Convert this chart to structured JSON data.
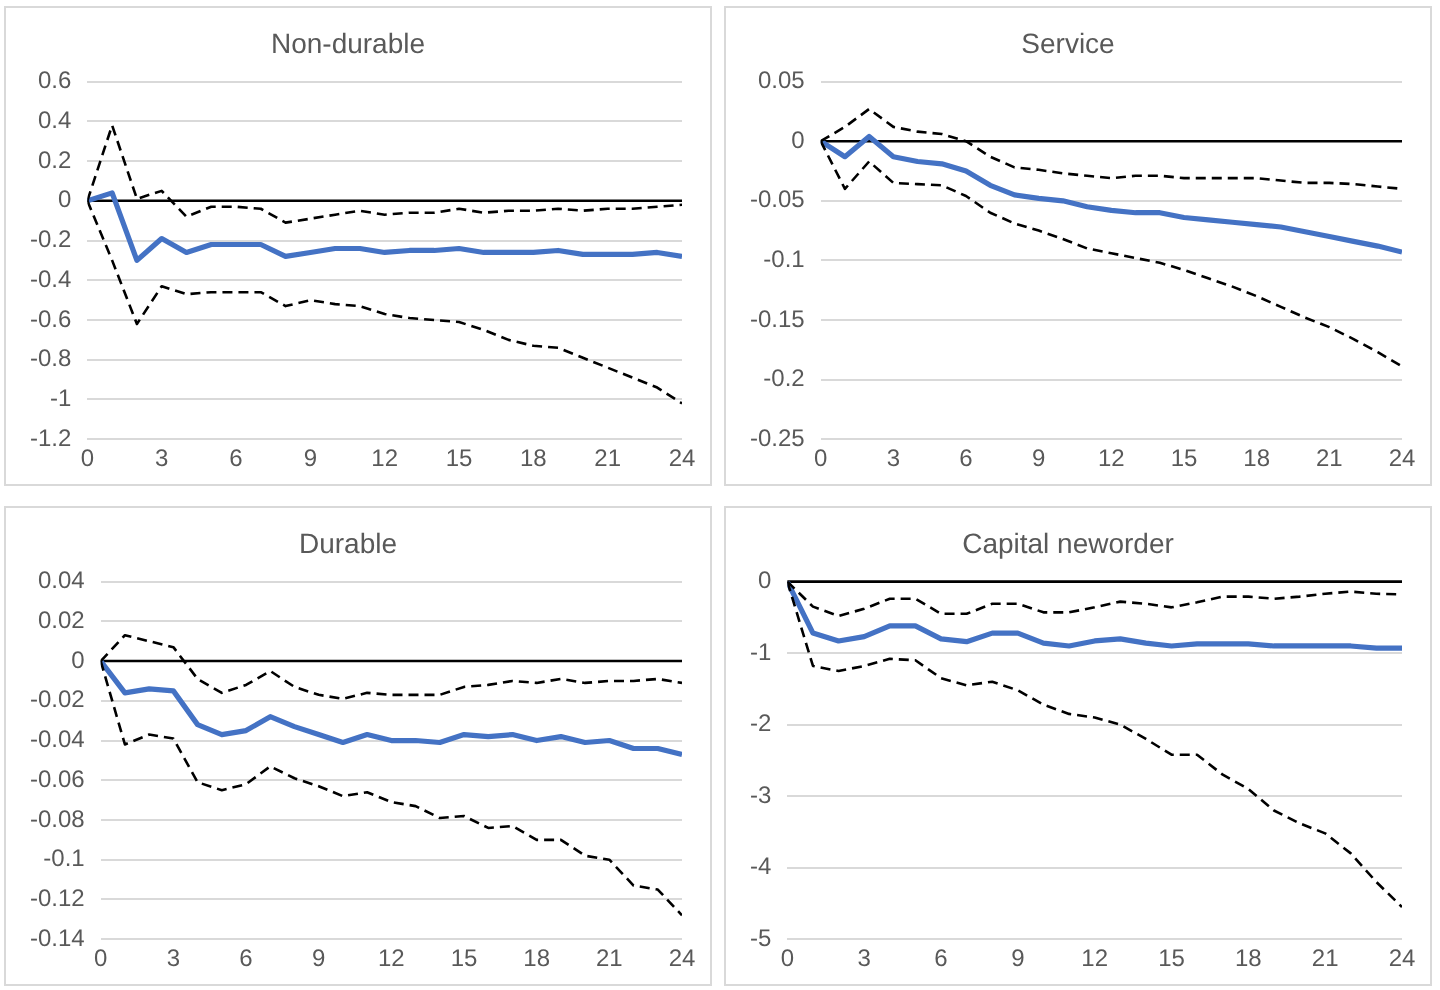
{
  "chart_data": [
    {
      "type": "line",
      "title": "Non-durable",
      "x": [
        0,
        1,
        2,
        3,
        4,
        5,
        6,
        7,
        8,
        9,
        10,
        11,
        12,
        13,
        14,
        15,
        16,
        17,
        18,
        19,
        20,
        21,
        22,
        23,
        24
      ],
      "xlim": [
        0,
        24
      ],
      "xticks": [
        0,
        3,
        6,
        9,
        12,
        15,
        18,
        21,
        24
      ],
      "ylim": [
        -1.2,
        0.6
      ],
      "yticks": [
        -1.2,
        -1,
        -0.8,
        -0.6,
        -0.4,
        -0.2,
        0,
        0.2,
        0.4,
        0.6
      ],
      "grid": "y",
      "legend": false,
      "marker": "none",
      "ref_lines": [
        {
          "axis": "y",
          "value": 0,
          "color": "#000000",
          "line_style": "solid"
        }
      ],
      "series": [
        {
          "color": "#000000",
          "line_style": "dashed",
          "values": [
            0,
            0.38,
            0.01,
            0.05,
            -0.08,
            -0.03,
            -0.03,
            -0.04,
            -0.11,
            -0.09,
            -0.07,
            -0.05,
            -0.07,
            -0.06,
            -0.06,
            -0.04,
            -0.06,
            -0.05,
            -0.05,
            -0.04,
            -0.05,
            -0.04,
            -0.04,
            -0.03,
            -0.02
          ]
        },
        {
          "color": "#000000",
          "line_style": "dashed",
          "values": [
            0,
            -0.3,
            -0.62,
            -0.43,
            -0.47,
            -0.46,
            -0.46,
            -0.46,
            -0.53,
            -0.5,
            -0.52,
            -0.53,
            -0.57,
            -0.59,
            -0.6,
            -0.61,
            -0.65,
            -0.7,
            -0.73,
            -0.74,
            -0.79,
            -0.84,
            -0.89,
            -0.94,
            -1.02
          ]
        },
        {
          "color": "#4472c4",
          "line_style": "solid",
          "values": [
            0,
            0.04,
            -0.3,
            -0.19,
            -0.26,
            -0.22,
            -0.22,
            -0.22,
            -0.28,
            -0.26,
            -0.24,
            -0.24,
            -0.26,
            -0.25,
            -0.25,
            -0.24,
            -0.26,
            -0.26,
            -0.26,
            -0.25,
            -0.27,
            -0.27,
            -0.27,
            -0.26,
            -0.28
          ]
        }
      ]
    },
    {
      "type": "line",
      "title": "Service",
      "x": [
        0,
        1,
        2,
        3,
        4,
        5,
        6,
        7,
        8,
        9,
        10,
        11,
        12,
        13,
        14,
        15,
        16,
        17,
        18,
        19,
        20,
        21,
        22,
        23,
        24
      ],
      "xlim": [
        0,
        24
      ],
      "xticks": [
        0,
        3,
        6,
        9,
        12,
        15,
        18,
        21,
        24
      ],
      "ylim": [
        -0.25,
        0.05
      ],
      "yticks": [
        -0.25,
        -0.2,
        -0.15,
        -0.1,
        -0.05,
        0,
        0.05
      ],
      "grid": "y",
      "legend": false,
      "marker": "none",
      "ref_lines": [
        {
          "axis": "y",
          "value": 0,
          "color": "#000000",
          "line_style": "solid"
        }
      ],
      "series": [
        {
          "color": "#000000",
          "line_style": "dashed",
          "values": [
            0,
            0.012,
            0.027,
            0.012,
            0.008,
            0.006,
            0,
            -0.013,
            -0.022,
            -0.024,
            -0.027,
            -0.029,
            -0.031,
            -0.029,
            -0.029,
            -0.031,
            -0.031,
            -0.031,
            -0.031,
            -0.033,
            -0.035,
            -0.035,
            -0.036,
            -0.038,
            -0.04
          ]
        },
        {
          "color": "#000000",
          "line_style": "dashed",
          "values": [
            0,
            -0.04,
            -0.017,
            -0.035,
            -0.036,
            -0.037,
            -0.046,
            -0.06,
            -0.069,
            -0.075,
            -0.082,
            -0.09,
            -0.094,
            -0.098,
            -0.102,
            -0.108,
            -0.115,
            -0.122,
            -0.13,
            -0.139,
            -0.148,
            -0.156,
            -0.166,
            -0.177,
            -0.189
          ]
        },
        {
          "color": "#4472c4",
          "line_style": "solid",
          "values": [
            0,
            -0.013,
            0.004,
            -0.013,
            -0.017,
            -0.019,
            -0.025,
            -0.037,
            -0.045,
            -0.048,
            -0.05,
            -0.055,
            -0.058,
            -0.06,
            -0.06,
            -0.064,
            -0.066,
            -0.068,
            -0.07,
            -0.072,
            -0.076,
            -0.08,
            -0.084,
            -0.088,
            -0.093
          ]
        }
      ]
    },
    {
      "type": "line",
      "title": "Durable",
      "x": [
        0,
        1,
        2,
        3,
        4,
        5,
        6,
        7,
        8,
        9,
        10,
        11,
        12,
        13,
        14,
        15,
        16,
        17,
        18,
        19,
        20,
        21,
        22,
        23,
        24
      ],
      "xlim": [
        0,
        24
      ],
      "xticks": [
        0,
        3,
        6,
        9,
        12,
        15,
        18,
        21,
        24
      ],
      "ylim": [
        -0.14,
        0.04
      ],
      "yticks": [
        -0.14,
        -0.12,
        -0.1,
        -0.08,
        -0.06,
        -0.04,
        -0.02,
        0,
        0.02,
        0.04
      ],
      "grid": "y",
      "legend": false,
      "marker": "none",
      "ref_lines": [
        {
          "axis": "y",
          "value": 0,
          "color": "#000000",
          "line_style": "solid"
        }
      ],
      "series": [
        {
          "color": "#000000",
          "line_style": "dashed",
          "values": [
            0,
            0.013,
            0.01,
            0.007,
            -0.009,
            -0.016,
            -0.012,
            -0.005,
            -0.013,
            -0.017,
            -0.019,
            -0.016,
            -0.017,
            -0.017,
            -0.017,
            -0.013,
            -0.012,
            -0.01,
            -0.011,
            -0.009,
            -0.011,
            -0.01,
            -0.01,
            -0.009,
            -0.011
          ]
        },
        {
          "color": "#000000",
          "line_style": "dashed",
          "values": [
            0,
            -0.042,
            -0.037,
            -0.039,
            -0.061,
            -0.065,
            -0.062,
            -0.053,
            -0.059,
            -0.063,
            -0.068,
            -0.066,
            -0.071,
            -0.073,
            -0.079,
            -0.078,
            -0.084,
            -0.083,
            -0.09,
            -0.09,
            -0.098,
            -0.1,
            -0.113,
            -0.115,
            -0.128
          ]
        },
        {
          "color": "#4472c4",
          "line_style": "solid",
          "values": [
            0,
            -0.016,
            -0.014,
            -0.015,
            -0.032,
            -0.037,
            -0.035,
            -0.028,
            -0.033,
            -0.037,
            -0.041,
            -0.037,
            -0.04,
            -0.04,
            -0.041,
            -0.037,
            -0.038,
            -0.037,
            -0.04,
            -0.038,
            -0.041,
            -0.04,
            -0.044,
            -0.044,
            -0.047
          ]
        }
      ]
    },
    {
      "type": "line",
      "title": "Capital neworder",
      "x": [
        0,
        1,
        2,
        3,
        4,
        5,
        6,
        7,
        8,
        9,
        10,
        11,
        12,
        13,
        14,
        15,
        16,
        17,
        18,
        19,
        20,
        21,
        22,
        23,
        24
      ],
      "xlim": [
        0,
        24
      ],
      "xticks": [
        0,
        3,
        6,
        9,
        12,
        15,
        18,
        21,
        24
      ],
      "ylim": [
        -5,
        0
      ],
      "yticks": [
        -5,
        -4,
        -3,
        -2,
        -1,
        0
      ],
      "grid": "y",
      "legend": false,
      "marker": "none",
      "ref_lines": [
        {
          "axis": "y",
          "value": 0,
          "color": "#000000",
          "line_style": "solid"
        }
      ],
      "series": [
        {
          "color": "#000000",
          "line_style": "dashed",
          "values": [
            0,
            -0.35,
            -0.48,
            -0.38,
            -0.24,
            -0.24,
            -0.45,
            -0.45,
            -0.31,
            -0.31,
            -0.43,
            -0.43,
            -0.36,
            -0.28,
            -0.31,
            -0.36,
            -0.29,
            -0.21,
            -0.21,
            -0.24,
            -0.21,
            -0.17,
            -0.14,
            -0.17,
            -0.18
          ]
        },
        {
          "color": "#000000",
          "line_style": "dashed",
          "values": [
            0,
            -1.18,
            -1.25,
            -1.18,
            -1.08,
            -1.1,
            -1.35,
            -1.45,
            -1.4,
            -1.52,
            -1.72,
            -1.85,
            -1.9,
            -2,
            -2.2,
            -2.42,
            -2.42,
            -2.7,
            -2.9,
            -3.2,
            -3.38,
            -3.52,
            -3.8,
            -4.2,
            -4.55
          ]
        },
        {
          "color": "#4472c4",
          "line_style": "solid",
          "values": [
            0,
            -0.72,
            -0.83,
            -0.77,
            -0.62,
            -0.62,
            -0.8,
            -0.84,
            -0.72,
            -0.72,
            -0.86,
            -0.9,
            -0.83,
            -0.8,
            -0.86,
            -0.9,
            -0.87,
            -0.87,
            -0.87,
            -0.9,
            -0.9,
            -0.9,
            -0.9,
            -0.93,
            -0.93
          ]
        }
      ]
    }
  ]
}
